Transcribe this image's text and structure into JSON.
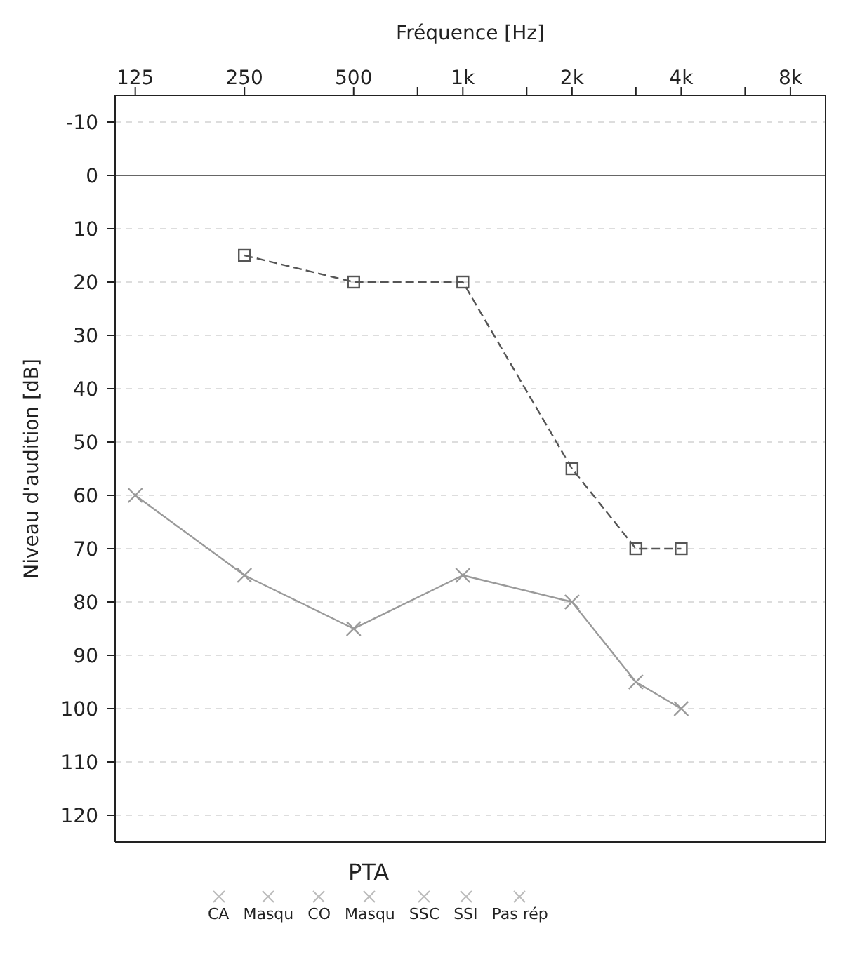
{
  "chart_data": {
    "type": "line",
    "xlabel": "Fréquence [Hz]",
    "ylabel": "Niveau d'audition [dB]",
    "log": "x",
    "xlim": [
      110,
      10000
    ],
    "ylim": [
      125,
      -15
    ],
    "xticks": [
      {
        "value": 125,
        "label": "125"
      },
      {
        "value": 250,
        "label": "250"
      },
      {
        "value": 500,
        "label": "500"
      },
      {
        "value": 750,
        "label": null
      },
      {
        "value": 1000,
        "label": "1k"
      },
      {
        "value": 1500,
        "label": null
      },
      {
        "value": 2000,
        "label": "2k"
      },
      {
        "value": 3000,
        "label": null
      },
      {
        "value": 4000,
        "label": "4k"
      },
      {
        "value": 6000,
        "label": null
      },
      {
        "value": 8000,
        "label": "8k"
      }
    ],
    "yticks": [
      -10,
      0,
      10,
      20,
      30,
      40,
      50,
      60,
      70,
      80,
      90,
      100,
      110,
      120
    ],
    "grid": "y",
    "ref_lines": [
      {
        "axis": "y",
        "value": 0,
        "color": "#666666"
      }
    ],
    "series": [
      {
        "x": [
          250,
          500,
          1000,
          2000,
          3000,
          4000
        ],
        "values": [
          15,
          20,
          20,
          55,
          70,
          70
        ],
        "color": "#555555",
        "line_style": "dashed",
        "marker": "square"
      },
      {
        "x": [
          125,
          250,
          500,
          1000,
          2000,
          3000,
          4000
        ],
        "values": [
          60,
          75,
          85,
          75,
          80,
          95,
          100
        ],
        "color": "#9a9a9a",
        "line_style": "solid",
        "marker": "cross"
      }
    ],
    "annotations": [
      "PTA",
      "CA",
      "Masqu",
      "CO",
      "Masqu",
      "SSC",
      "SSI",
      "Pas rép"
    ]
  }
}
